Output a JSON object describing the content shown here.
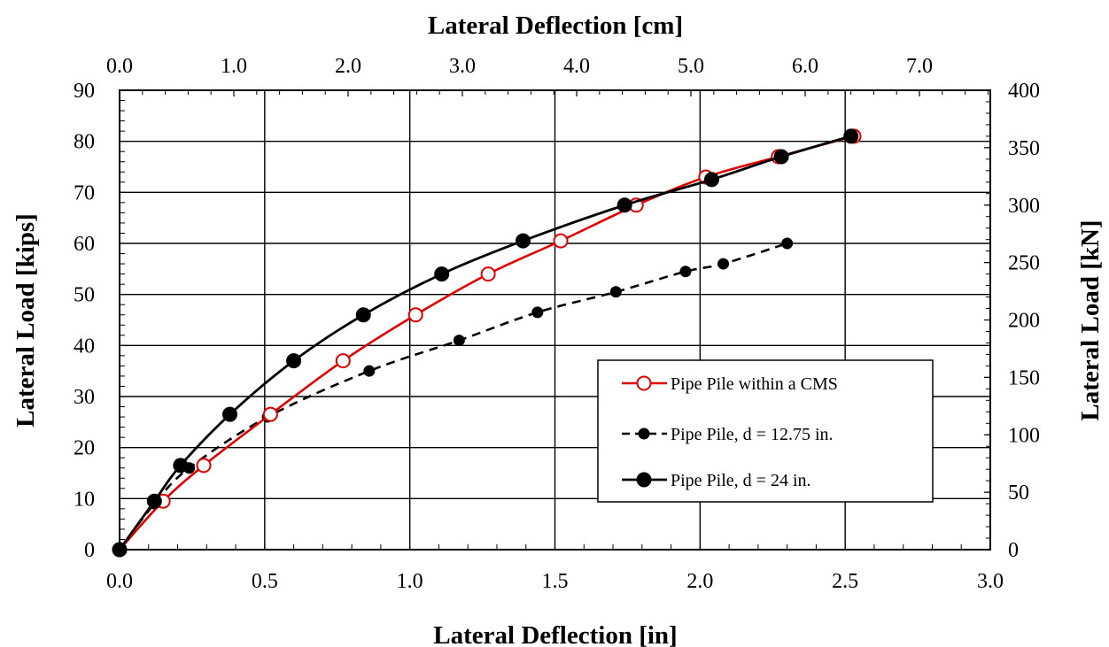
{
  "chart_data": {
    "type": "line",
    "x_axis_bottom": {
      "label": "Lateral Deflection [in]",
      "range": [
        0.0,
        3.0
      ],
      "ticks": [
        "0.0",
        "0.5",
        "1.0",
        "1.5",
        "2.0",
        "2.5",
        "3.0"
      ]
    },
    "x_axis_top": {
      "label": "Lateral Deflection [cm]",
      "range": [
        0.0,
        7.62
      ],
      "ticks": [
        "0.0",
        "1.0",
        "2.0",
        "3.0",
        "4.0",
        "5.0",
        "6.0",
        "7.0"
      ]
    },
    "y_axis_left": {
      "label": "Lateral Load [kips]",
      "range": [
        0,
        90
      ],
      "ticks": [
        "0",
        "10",
        "20",
        "30",
        "40",
        "50",
        "60",
        "70",
        "80",
        "90"
      ]
    },
    "y_axis_right": {
      "label": "Lateral Load [kN]",
      "range": [
        0,
        400
      ],
      "ticks": [
        "0",
        "50",
        "100",
        "150",
        "200",
        "250",
        "300",
        "350",
        "400"
      ]
    },
    "grid": true,
    "legend_position": "lower-right",
    "series": [
      {
        "name": "Pipe Pile within a CMS",
        "color": "#e00000",
        "line_style": "solid",
        "marker": "open-circle",
        "x": [
          0.0,
          0.15,
          0.29,
          0.52,
          0.77,
          1.02,
          1.27,
          1.52,
          1.78,
          2.02,
          2.27,
          2.53
        ],
        "y": [
          0.0,
          9.5,
          16.5,
          26.5,
          37.0,
          46.0,
          54.0,
          60.5,
          67.5,
          73.0,
          77.0,
          81.0
        ]
      },
      {
        "name": "Pipe Pile, d = 12.75 in.",
        "color": "#000000",
        "line_style": "dashed",
        "marker": "small-filled-circle",
        "x": [
          0.0,
          0.12,
          0.24,
          0.51,
          0.86,
          1.17,
          1.44,
          1.71,
          1.95,
          2.08,
          2.3
        ],
        "y": [
          0.0,
          9.0,
          16.0,
          26.0,
          35.0,
          41.0,
          46.5,
          50.5,
          54.5,
          56.0,
          60.0
        ]
      },
      {
        "name": "Pipe Pile, d = 24 in.",
        "color": "#000000",
        "line_style": "solid",
        "marker": "large-filled-circle",
        "x": [
          0.0,
          0.12,
          0.21,
          0.38,
          0.6,
          0.84,
          1.11,
          1.39,
          1.74,
          2.04,
          2.28,
          2.52
        ],
        "y": [
          0.0,
          9.5,
          16.5,
          26.5,
          37.0,
          46.0,
          54.0,
          60.5,
          67.5,
          72.5,
          77.0,
          81.0
        ]
      }
    ]
  }
}
